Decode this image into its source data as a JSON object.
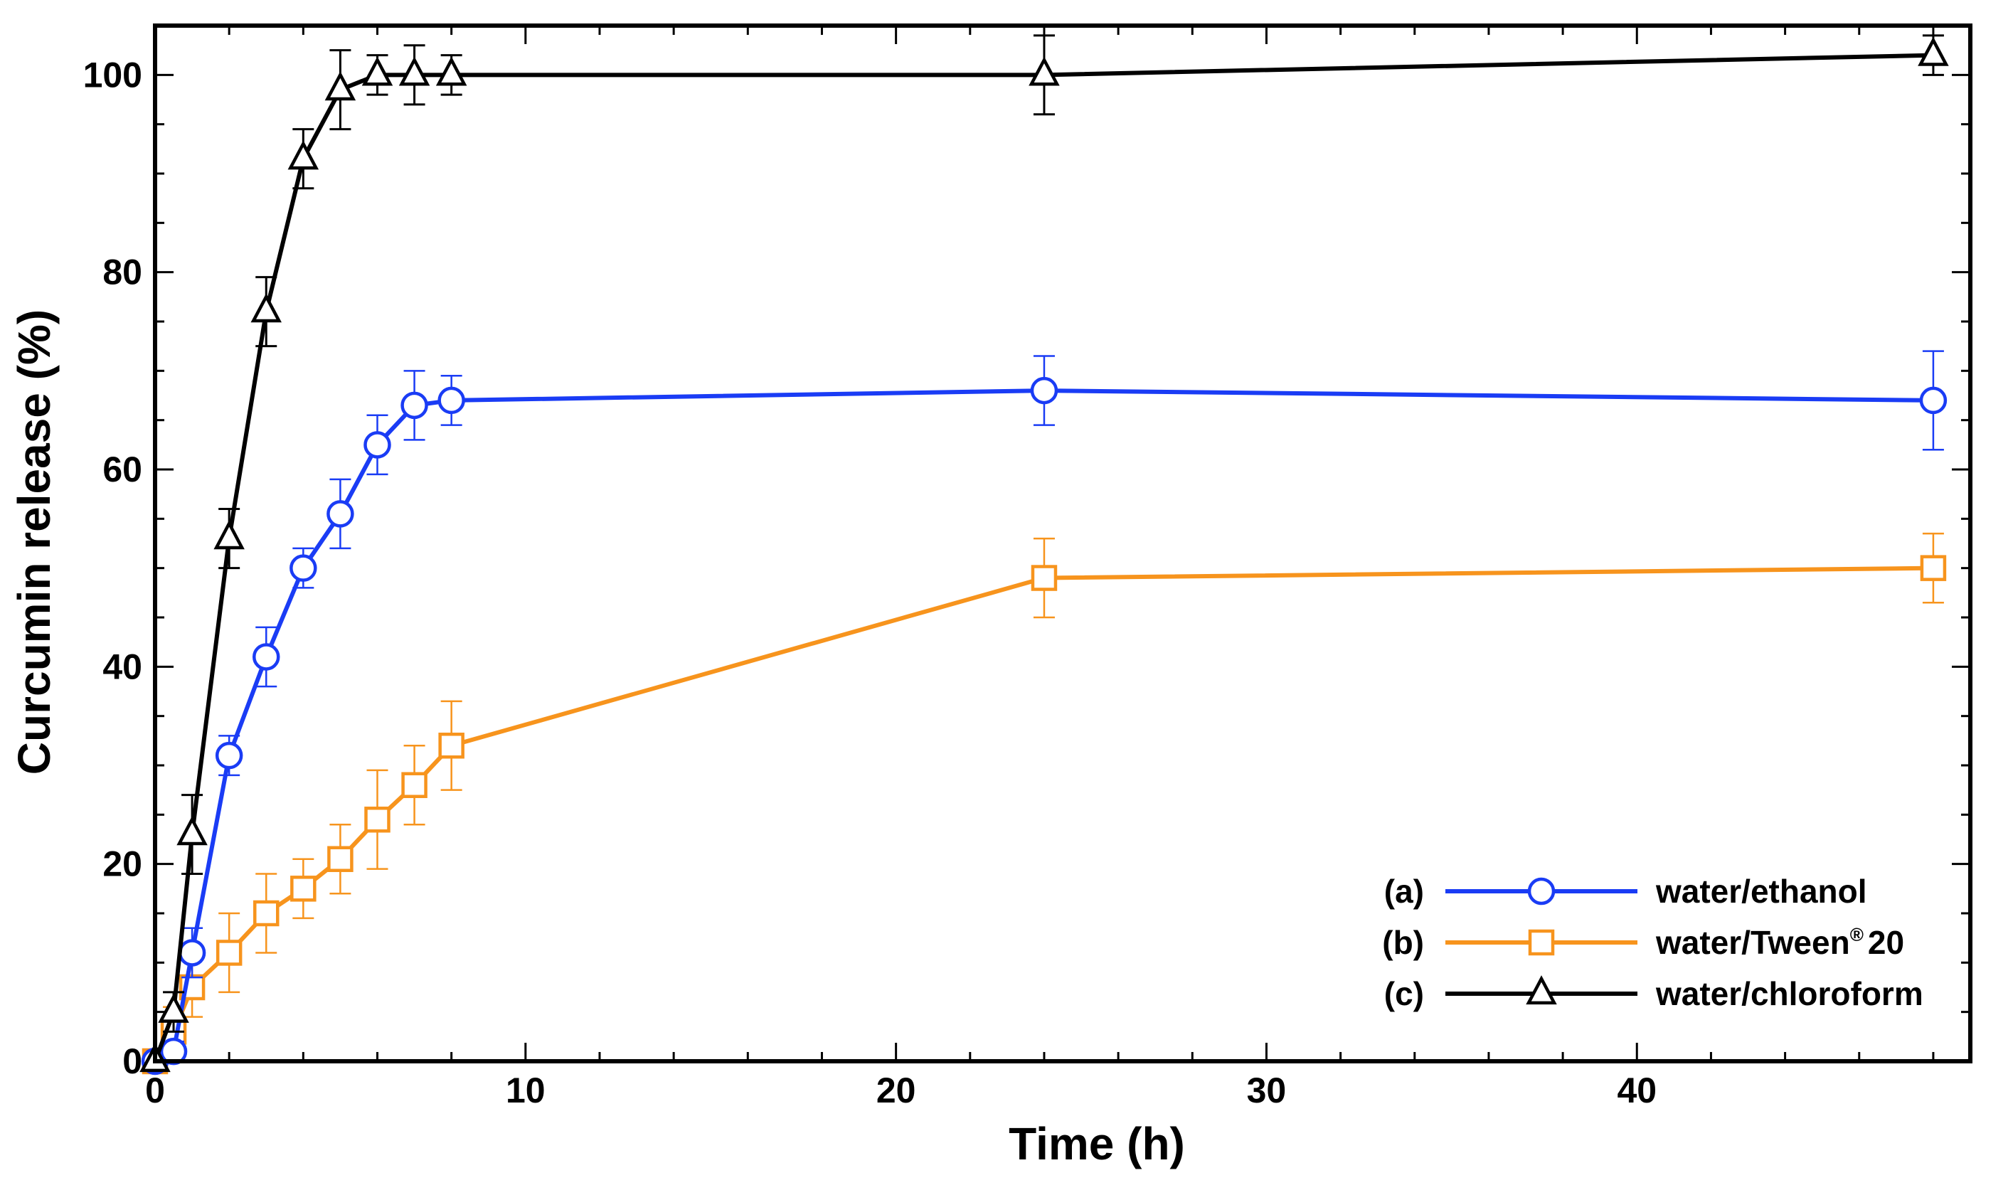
{
  "chart_data": {
    "type": "line",
    "title": "",
    "xlabel": "Time (h)",
    "ylabel": "Curcumin release (%)",
    "xlim": [
      0,
      49
    ],
    "ylim": [
      0,
      105
    ],
    "xticks": [
      0,
      10,
      20,
      30,
      40
    ],
    "yticks": [
      0,
      20,
      40,
      60,
      80,
      100
    ],
    "legend_position": "bottom-right",
    "series": [
      {
        "id": "a",
        "tag": "(a)",
        "name": "water/ethanol",
        "color": "#1a3cf5",
        "marker": "circle",
        "x": [
          0,
          0.5,
          1,
          2,
          3,
          4,
          5,
          6,
          7,
          8,
          24,
          48
        ],
        "y": [
          0,
          1,
          11,
          31,
          41,
          50,
          55.5,
          62.5,
          66.5,
          67,
          68,
          67
        ],
        "err": [
          0,
          1,
          2.5,
          2,
          3,
          2,
          3.5,
          3,
          3.5,
          2.5,
          3.5,
          5
        ]
      },
      {
        "id": "b",
        "tag": "(b)",
        "name": "water/Tween",
        "name_sup": "®",
        "name_suffix": "20",
        "color": "#f7941d",
        "marker": "square",
        "x": [
          0,
          0.5,
          1,
          2,
          3,
          4,
          5,
          6,
          7,
          8,
          24,
          48
        ],
        "y": [
          0,
          3,
          7.5,
          11,
          15,
          17.5,
          20.5,
          24.5,
          28,
          32,
          49,
          50
        ],
        "err": [
          0,
          2.5,
          3,
          4,
          4,
          3,
          3.5,
          5,
          4,
          4.5,
          4,
          3.5
        ]
      },
      {
        "id": "c",
        "tag": "(c)",
        "name": "water/chloroform",
        "color": "#000000",
        "marker": "triangle",
        "x": [
          0,
          0.5,
          1,
          2,
          3,
          4,
          5,
          6,
          7,
          8,
          24,
          48
        ],
        "y": [
          0,
          5,
          23,
          53,
          76,
          91.5,
          98.5,
          100,
          100,
          100,
          100,
          102
        ],
        "err": [
          0,
          2,
          4,
          3,
          3.5,
          3,
          4,
          2,
          3,
          2,
          4,
          2
        ]
      }
    ]
  }
}
